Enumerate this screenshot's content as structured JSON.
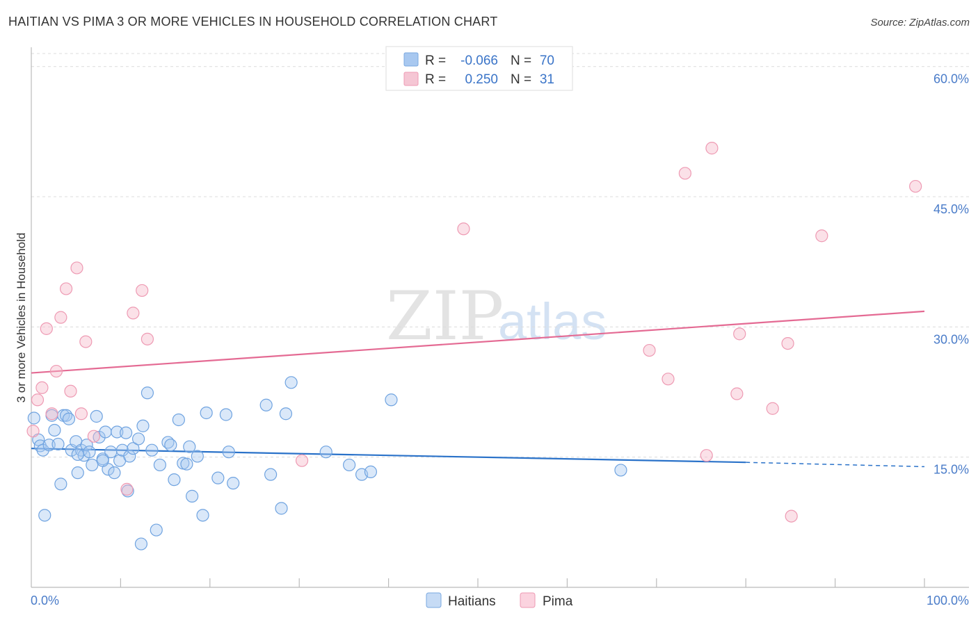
{
  "title": "HAITIAN VS PIMA 3 OR MORE VEHICLES IN HOUSEHOLD CORRELATION CHART",
  "source": "Source: ZipAtlas.com",
  "watermark": {
    "zip": "ZIP",
    "atlas": "atlas"
  },
  "legend_top": [
    {
      "r_label": "R =",
      "r_value": "-0.066",
      "n_label": "N =",
      "n_value": "70",
      "color": "#a8c8f0"
    },
    {
      "r_label": "R =",
      "r_value": "0.250",
      "n_label": "N =",
      "n_value": "31",
      "color": "#f5b8c8"
    }
  ],
  "legend_bottom": [
    {
      "label": "Haitians",
      "color": "#a8c8f0"
    },
    {
      "label": "Pima",
      "color": "#f5b8c8"
    }
  ],
  "chart_data": {
    "type": "scatter",
    "title": "HAITIAN VS PIMA 3 OR MORE VEHICLES IN HOUSEHOLD CORRELATION CHART",
    "xlabel": "",
    "ylabel": "3 or more Vehicles in Household",
    "xlim": [
      0,
      100
    ],
    "ylim": [
      0,
      61.5
    ],
    "x_tick_labels": [
      "0.0%",
      "100.0%"
    ],
    "y_ticks": [
      15,
      30,
      45,
      60
    ],
    "y_tick_labels": [
      "15.0%",
      "30.0%",
      "45.0%",
      "60.0%"
    ],
    "grid": true,
    "series": [
      {
        "name": "Haitians",
        "color": "#6fa3e0",
        "fill": "#a8c8f0",
        "trend": {
          "x": [
            0,
            80
          ],
          "y": [
            16.0,
            14.4
          ],
          "dashed_to": [
            100,
            13.9
          ],
          "color": "#2a72c9"
        },
        "points": [
          [
            0.3,
            19.5
          ],
          [
            0.8,
            17.0
          ],
          [
            1.0,
            16.3
          ],
          [
            1.3,
            15.8
          ],
          [
            1.5,
            8.3
          ],
          [
            2.0,
            16.4
          ],
          [
            2.3,
            19.8
          ],
          [
            2.6,
            18.1
          ],
          [
            3.0,
            16.5
          ],
          [
            3.3,
            11.9
          ],
          [
            3.6,
            19.8
          ],
          [
            3.9,
            19.8
          ],
          [
            4.2,
            19.4
          ],
          [
            4.5,
            15.8
          ],
          [
            5.0,
            16.8
          ],
          [
            5.2,
            13.2
          ],
          [
            5.6,
            15.8
          ],
          [
            5.9,
            15.2
          ],
          [
            6.2,
            16.4
          ],
          [
            6.5,
            15.6
          ],
          [
            6.8,
            14.1
          ],
          [
            7.3,
            19.7
          ],
          [
            7.6,
            17.3
          ],
          [
            8.0,
            14.8
          ],
          [
            8.3,
            17.9
          ],
          [
            8.6,
            13.6
          ],
          [
            8.9,
            15.6
          ],
          [
            9.3,
            13.2
          ],
          [
            9.6,
            17.9
          ],
          [
            9.9,
            14.6
          ],
          [
            10.2,
            15.8
          ],
          [
            10.6,
            17.8
          ],
          [
            10.8,
            11.1
          ],
          [
            11.0,
            15.1
          ],
          [
            11.4,
            16.0
          ],
          [
            12.0,
            17.1
          ],
          [
            12.5,
            18.6
          ],
          [
            13.0,
            22.4
          ],
          [
            13.5,
            15.8
          ],
          [
            14.0,
            6.6
          ],
          [
            14.4,
            14.1
          ],
          [
            15.3,
            16.7
          ],
          [
            15.6,
            16.4
          ],
          [
            16.0,
            12.4
          ],
          [
            16.5,
            19.3
          ],
          [
            17.0,
            14.3
          ],
          [
            17.4,
            14.2
          ],
          [
            17.7,
            16.2
          ],
          [
            18.0,
            10.5
          ],
          [
            18.6,
            15.1
          ],
          [
            19.2,
            8.3
          ],
          [
            19.6,
            20.1
          ],
          [
            20.9,
            12.6
          ],
          [
            21.8,
            19.9
          ],
          [
            22.1,
            15.6
          ],
          [
            22.6,
            12.0
          ],
          [
            26.3,
            21.0
          ],
          [
            26.8,
            13.0
          ],
          [
            28.0,
            9.1
          ],
          [
            28.5,
            20.0
          ],
          [
            29.1,
            23.6
          ],
          [
            33.0,
            15.6
          ],
          [
            35.6,
            14.1
          ],
          [
            37.0,
            13.0
          ],
          [
            38.0,
            13.3
          ],
          [
            40.3,
            21.6
          ],
          [
            12.3,
            5.0
          ],
          [
            5.2,
            15.3
          ],
          [
            66.0,
            13.5
          ],
          [
            8.0,
            14.6
          ]
        ]
      },
      {
        "name": "Pima",
        "color": "#ee9ab3",
        "fill": "#f5b8c8",
        "trend": {
          "x": [
            0,
            100
          ],
          "y": [
            24.7,
            31.8
          ],
          "color": "#e46a93"
        },
        "points": [
          [
            0.2,
            18.0
          ],
          [
            0.7,
            21.6
          ],
          [
            1.2,
            23.0
          ],
          [
            1.7,
            29.8
          ],
          [
            2.3,
            20.0
          ],
          [
            2.8,
            24.9
          ],
          [
            3.3,
            31.1
          ],
          [
            3.9,
            34.4
          ],
          [
            4.4,
            22.6
          ],
          [
            5.1,
            36.8
          ],
          [
            5.6,
            20.0
          ],
          [
            6.1,
            28.3
          ],
          [
            7.0,
            17.4
          ],
          [
            10.7,
            11.3
          ],
          [
            11.4,
            31.6
          ],
          [
            12.4,
            34.2
          ],
          [
            13.0,
            28.6
          ],
          [
            30.3,
            14.6
          ],
          [
            48.4,
            41.3
          ],
          [
            69.2,
            27.3
          ],
          [
            71.3,
            24.0
          ],
          [
            73.2,
            47.7
          ],
          [
            75.6,
            15.2
          ],
          [
            76.2,
            50.6
          ],
          [
            79.0,
            22.3
          ],
          [
            79.3,
            29.2
          ],
          [
            83.0,
            20.6
          ],
          [
            84.7,
            28.1
          ],
          [
            85.1,
            8.2
          ],
          [
            88.5,
            40.5
          ],
          [
            99.0,
            46.2
          ]
        ]
      }
    ]
  }
}
